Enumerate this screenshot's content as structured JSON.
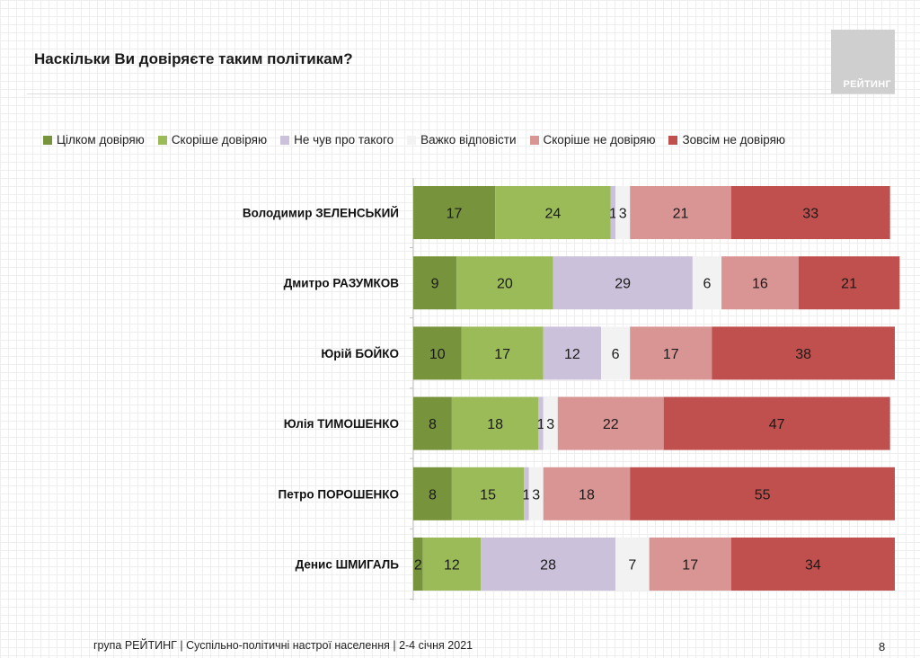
{
  "title": "Наскільки Ви довіряєте таким політикам?",
  "logo": {
    "text": "РЕЙТИНГ"
  },
  "chart_data": {
    "type": "bar",
    "orientation": "horizontal",
    "stacked": true,
    "title": "Наскільки Ви довіряєте таким політикам?",
    "unit": "%",
    "categories": [
      "Володимир ЗЕЛЕНСЬКИЙ",
      "Дмитро РАЗУМКОВ",
      "Юрій БОЙКО",
      "Юлія ТИМОШЕНКО",
      "Петро ПОРОШЕНКО",
      "Денис ШМИГАЛЬ"
    ],
    "series": [
      {
        "name": "Цілком довіряю",
        "color": "#77933c",
        "values": [
          17,
          9,
          10,
          8,
          8,
          2
        ]
      },
      {
        "name": "Скоріше довіряю",
        "color": "#9bbb59",
        "values": [
          24,
          20,
          17,
          18,
          15,
          12
        ]
      },
      {
        "name": "Не чув про такого",
        "color": "#ccc1da",
        "values": [
          1,
          29,
          12,
          1,
          1,
          28
        ]
      },
      {
        "name": "Важко відповісти",
        "color": "#f2f2f2",
        "values": [
          3,
          6,
          6,
          3,
          3,
          7
        ]
      },
      {
        "name": "Скоріше не довіряю",
        "color": "#d99594",
        "values": [
          21,
          16,
          17,
          22,
          18,
          17
        ]
      },
      {
        "name": "Зовсім не довіряю",
        "color": "#c0504d",
        "values": [
          33,
          21,
          38,
          47,
          55,
          34
        ]
      }
    ],
    "xlim": [
      0,
      100
    ],
    "legend_position": "top",
    "grid": false
  },
  "footer": {
    "text": "група РЕЙТИНГ | Суспільно-політичні настрої населення  | 2-4 січня 2021",
    "page": "8"
  }
}
